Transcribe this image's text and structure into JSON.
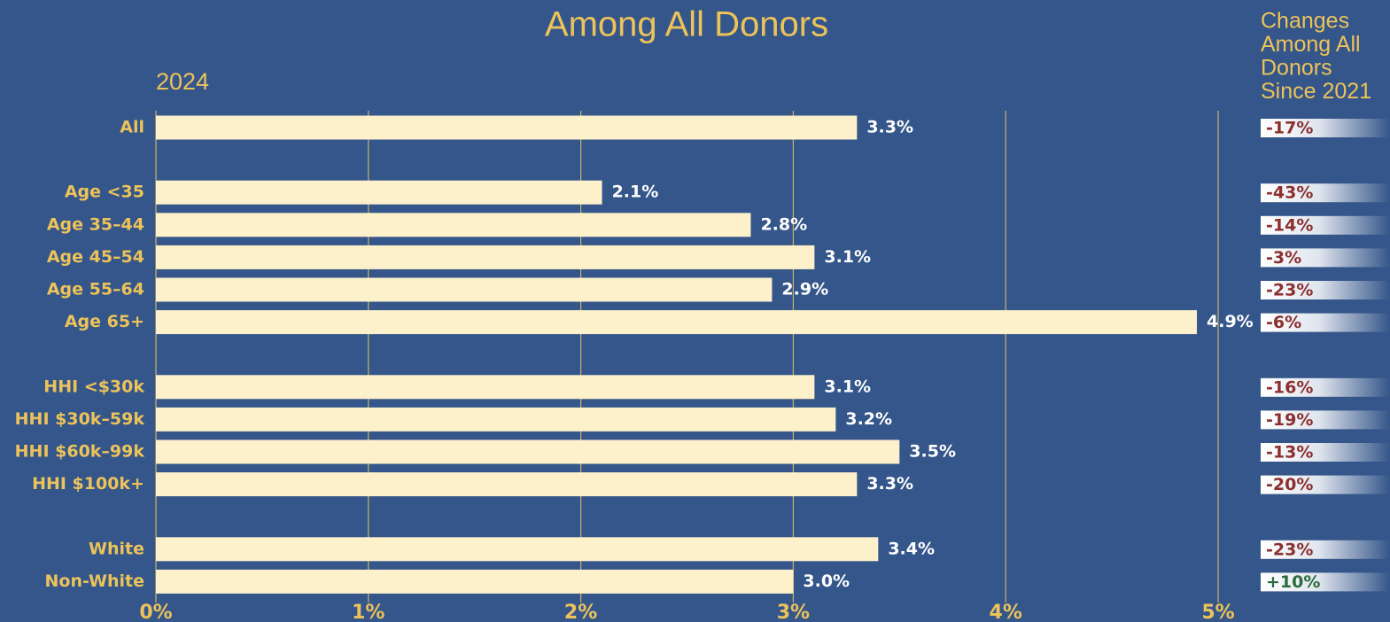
{
  "chart_data": {
    "type": "bar",
    "orientation": "horizontal",
    "title": "Among All Donors",
    "subtitle": "2024",
    "categories": [
      "All",
      null,
      "Age <35",
      "Age 35–44",
      "Age 45–54",
      "Age 55–64",
      "Age 65+",
      null,
      "HHI <$30k",
      "HHI $30k–59k",
      "HHI $60k–99k",
      "HHI $100k+",
      null,
      "White",
      "Non-White"
    ],
    "values": [
      3.3,
      null,
      2.1,
      2.8,
      3.1,
      2.9,
      4.9,
      null,
      3.1,
      3.2,
      3.5,
      3.3,
      null,
      3.4,
      3.0
    ],
    "value_labels": [
      "3.3%",
      null,
      "2.1%",
      "2.8%",
      "3.1%",
      "2.9%",
      "4.9%",
      null,
      "3.1%",
      "3.2%",
      "3.5%",
      "3.3%",
      null,
      "3.4%",
      "3.0%"
    ],
    "color": "#fdf1cc",
    "xlim": [
      0,
      5
    ],
    "xticks": [
      {
        "value": 0,
        "label": "0%"
      },
      {
        "value": 1,
        "label": "1%"
      },
      {
        "value": 2,
        "label": "2%"
      },
      {
        "value": 3,
        "label": "3%"
      },
      {
        "value": 4,
        "label": "4%"
      },
      {
        "value": 5,
        "label": "5%"
      }
    ],
    "grid": true,
    "changes": {
      "title": [
        "Changes",
        "Among All",
        "Donors",
        "Since 2021"
      ],
      "values": [
        -17,
        null,
        -43,
        -14,
        -3,
        -23,
        -6,
        null,
        -16,
        -19,
        -13,
        -20,
        null,
        -23,
        10
      ],
      "value_labels": [
        "-17%",
        null,
        "-43%",
        "-14%",
        "-3%",
        "-23%",
        "-6%",
        null,
        "-16%",
        "-19%",
        "-13%",
        "-20%",
        null,
        "-23%",
        "+10%"
      ]
    }
  }
}
